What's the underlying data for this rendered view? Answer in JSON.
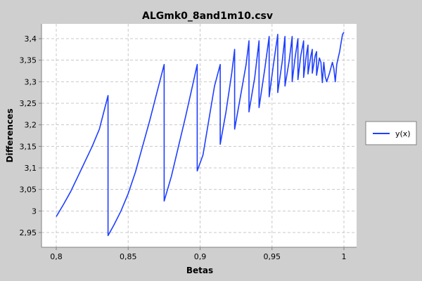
{
  "chart_data": {
    "type": "line",
    "title": "ALGmk0_8and1m10.csv",
    "xlabel": "Betas",
    "ylabel": "Differences",
    "xlim": [
      0.8,
      1.0
    ],
    "ylim": [
      2.93,
      3.42
    ],
    "x_ticks": [
      0.8,
      0.85,
      0.9,
      0.95,
      1.0
    ],
    "x_tick_labels": [
      "0,8",
      "0,85",
      "0,9",
      "0,95",
      "1"
    ],
    "y_ticks": [
      2.95,
      3.0,
      3.05,
      3.1,
      3.15,
      3.2,
      3.25,
      3.3,
      3.35,
      3.4
    ],
    "y_tick_labels": [
      "2,95",
      "3",
      "3,05",
      "3,1",
      "3,15",
      "3,2",
      "3,25",
      "3,3",
      "3,35",
      "3,4"
    ],
    "grid": true,
    "legend_position": "right",
    "colors": {
      "series": "#1f3fff",
      "plot_background": "#ffffff",
      "page_background": "#cfcfcf",
      "grid": "#c8c8c8"
    },
    "series": [
      {
        "name": "y(x)",
        "points": [
          [
            0.8,
            2.987
          ],
          [
            0.805,
            3.015
          ],
          [
            0.81,
            3.045
          ],
          [
            0.815,
            3.08
          ],
          [
            0.82,
            3.115
          ],
          [
            0.825,
            3.15
          ],
          [
            0.83,
            3.19
          ],
          [
            0.836,
            3.268
          ],
          [
            0.836,
            2.943
          ],
          [
            0.84,
            2.967
          ],
          [
            0.845,
            3.0
          ],
          [
            0.85,
            3.04
          ],
          [
            0.855,
            3.09
          ],
          [
            0.86,
            3.15
          ],
          [
            0.865,
            3.21
          ],
          [
            0.87,
            3.275
          ],
          [
            0.875,
            3.34
          ],
          [
            0.875,
            3.023
          ],
          [
            0.88,
            3.08
          ],
          [
            0.885,
            3.15
          ],
          [
            0.89,
            3.22
          ],
          [
            0.895,
            3.295
          ],
          [
            0.898,
            3.34
          ],
          [
            0.898,
            3.093
          ],
          [
            0.902,
            3.13
          ],
          [
            0.906,
            3.21
          ],
          [
            0.91,
            3.29
          ],
          [
            0.914,
            3.34
          ],
          [
            0.914,
            3.155
          ],
          [
            0.918,
            3.23
          ],
          [
            0.922,
            3.32
          ],
          [
            0.924,
            3.375
          ],
          [
            0.924,
            3.19
          ],
          [
            0.928,
            3.265
          ],
          [
            0.932,
            3.34
          ],
          [
            0.934,
            3.395
          ],
          [
            0.934,
            3.23
          ],
          [
            0.938,
            3.31
          ],
          [
            0.941,
            3.395
          ],
          [
            0.941,
            3.24
          ],
          [
            0.945,
            3.33
          ],
          [
            0.948,
            3.405
          ],
          [
            0.948,
            3.265
          ],
          [
            0.951,
            3.34
          ],
          [
            0.954,
            3.41
          ],
          [
            0.954,
            3.275
          ],
          [
            0.957,
            3.345
          ],
          [
            0.959,
            3.405
          ],
          [
            0.959,
            3.29
          ],
          [
            0.962,
            3.35
          ],
          [
            0.964,
            3.405
          ],
          [
            0.964,
            3.3
          ],
          [
            0.966,
            3.355
          ],
          [
            0.968,
            3.4
          ],
          [
            0.968,
            3.305
          ],
          [
            0.97,
            3.36
          ],
          [
            0.972,
            3.395
          ],
          [
            0.972,
            3.31
          ],
          [
            0.974,
            3.365
          ],
          [
            0.975,
            3.385
          ],
          [
            0.975,
            3.318
          ],
          [
            0.977,
            3.36
          ],
          [
            0.978,
            3.375
          ],
          [
            0.978,
            3.32
          ],
          [
            0.98,
            3.36
          ],
          [
            0.981,
            3.37
          ],
          [
            0.981,
            3.315
          ],
          [
            0.983,
            3.355
          ],
          [
            0.984,
            3.345
          ],
          [
            0.985,
            3.298
          ],
          [
            0.986,
            3.345
          ],
          [
            0.987,
            3.312
          ],
          [
            0.988,
            3.3
          ],
          [
            0.99,
            3.32
          ],
          [
            0.992,
            3.345
          ],
          [
            0.993,
            3.33
          ],
          [
            0.994,
            3.3
          ],
          [
            0.995,
            3.34
          ],
          [
            0.996,
            3.355
          ],
          [
            0.997,
            3.37
          ],
          [
            0.998,
            3.39
          ],
          [
            0.999,
            3.41
          ],
          [
            1.0,
            3.415
          ]
        ]
      }
    ]
  }
}
